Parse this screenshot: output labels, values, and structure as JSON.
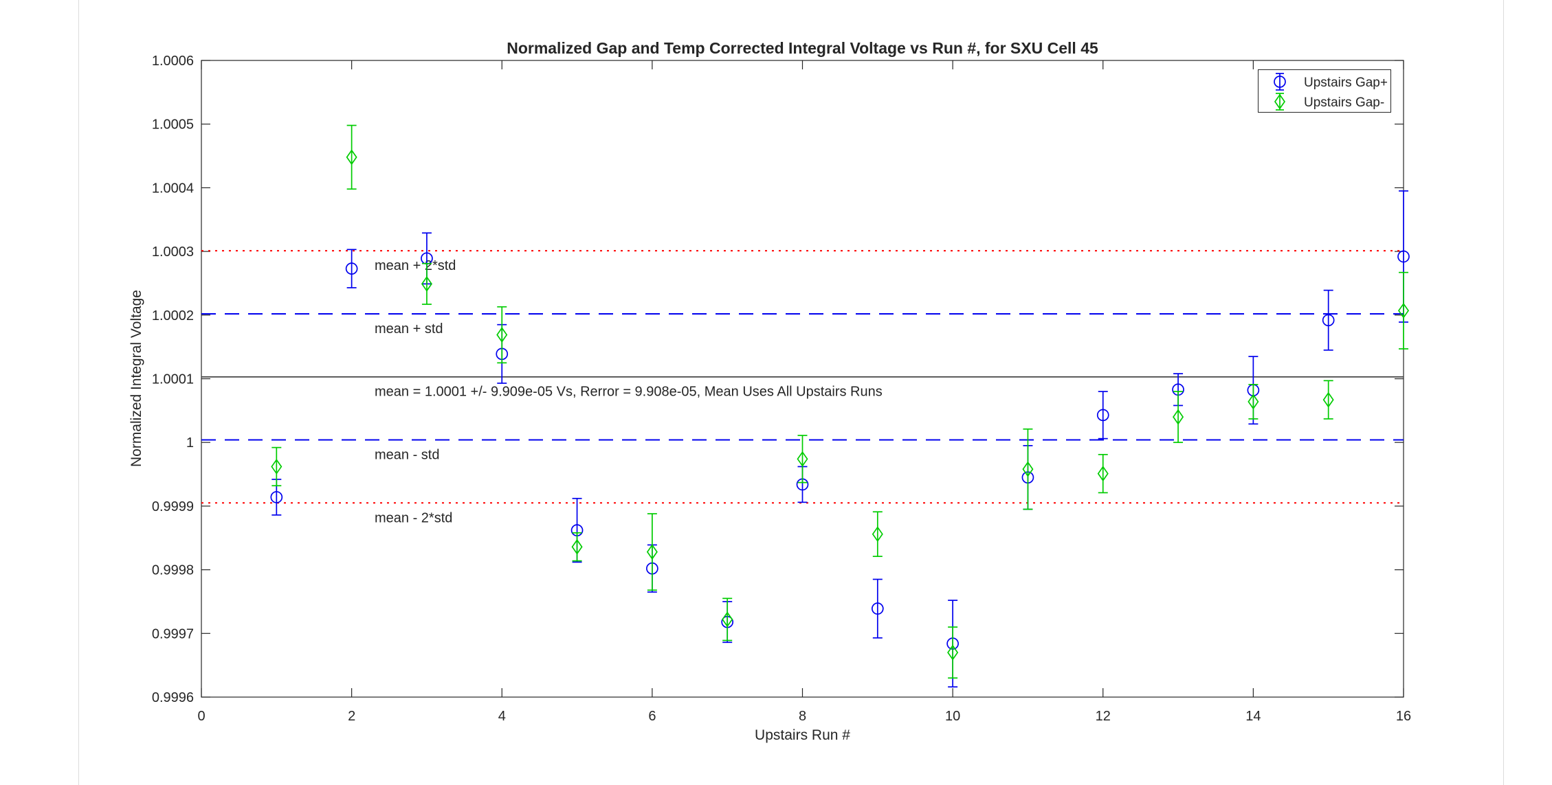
{
  "chart_data": {
    "type": "scatter",
    "title": "Normalized Gap and Temp Corrected Integral Voltage vs Run #, for SXU Cell 45",
    "xlabel": "Upstairs Run #",
    "ylabel": "Normalized Integral Voltage",
    "xlim": [
      0,
      16
    ],
    "ylim": [
      0.9996,
      1.0006
    ],
    "grid": false,
    "xticks": [
      0,
      2,
      4,
      6,
      8,
      10,
      12,
      14,
      16
    ],
    "yticks": [
      {
        "v": 0.9996,
        "label": "0.9996"
      },
      {
        "v": 0.9997,
        "label": "0.9997"
      },
      {
        "v": 0.9998,
        "label": "0.9998"
      },
      {
        "v": 0.9999,
        "label": "0.9999"
      },
      {
        "v": 1.0,
        "label": "1"
      },
      {
        "v": 1.0001,
        "label": "1.0001"
      },
      {
        "v": 1.0002,
        "label": "1.0002"
      },
      {
        "v": 1.0003,
        "label": "1.0003"
      },
      {
        "v": 1.0004,
        "label": "1.0004"
      },
      {
        "v": 1.0005,
        "label": "1.0005"
      },
      {
        "v": 1.0006,
        "label": "1.0006"
      }
    ],
    "x": [
      1,
      2,
      3,
      4,
      5,
      6,
      7,
      8,
      9,
      10,
      11,
      12,
      13,
      14,
      15,
      16
    ],
    "series": [
      {
        "name": "Upstairs Gap+",
        "marker": "circle",
        "color": "#0000EE",
        "y": [
          0.999914,
          1.000273,
          1.000289,
          1.000139,
          0.999862,
          0.999802,
          0.999718,
          0.999934,
          0.999739,
          0.999684,
          0.999945,
          1.000043,
          1.000083,
          1.000082,
          1.000192,
          1.000292
        ],
        "err": [
          2.8e-05,
          3e-05,
          4e-05,
          4.6e-05,
          5e-05,
          3.7e-05,
          3.2e-05,
          2.8e-05,
          4.6e-05,
          6.8e-05,
          5e-05,
          3.7e-05,
          2.5e-05,
          5.3e-05,
          4.7e-05,
          0.000103
        ]
      },
      {
        "name": "Upstairs Gap-",
        "marker": "diamond",
        "color": "#00CC00",
        "y": [
          0.999962,
          1.000448,
          1.000249,
          1.000169,
          0.999836,
          0.999828,
          0.999722,
          0.999974,
          0.999856,
          0.99967,
          0.999958,
          0.999951,
          1.00004,
          1.000064,
          1.000067,
          1.000207
        ],
        "err": [
          3e-05,
          5e-05,
          3.2e-05,
          4.4e-05,
          2.2e-05,
          6e-05,
          3.3e-05,
          3.7e-05,
          3.5e-05,
          4e-05,
          6.3e-05,
          3e-05,
          4e-05,
          2.7e-05,
          3e-05,
          6e-05
        ]
      }
    ],
    "ref_lines": [
      {
        "label": "mean + 2*std",
        "value": 1.000301,
        "style": "dotted",
        "color": "#FF0000"
      },
      {
        "label": "mean + std",
        "value": 1.000202,
        "style": "dashed",
        "color": "#0000EE"
      },
      {
        "label": "mean = 1.0001 +/- 9.909e-05 Vs, Rerror = 9.908e-05, Mean Uses All Upstairs Runs",
        "value": 1.000103,
        "style": "solid",
        "color": "#404040"
      },
      {
        "label": "mean - std",
        "value": 1.000004,
        "style": "dashed",
        "color": "#0000EE"
      },
      {
        "label": "mean - 2*std",
        "value": 0.999905,
        "style": "dotted",
        "color": "#FF0000"
      }
    ],
    "stats": {
      "mean": "1.0001",
      "std": "9.909e-05",
      "rerror": "9.908e-05"
    },
    "legend": {
      "position": "top-right"
    },
    "axis_color": "#262626"
  }
}
